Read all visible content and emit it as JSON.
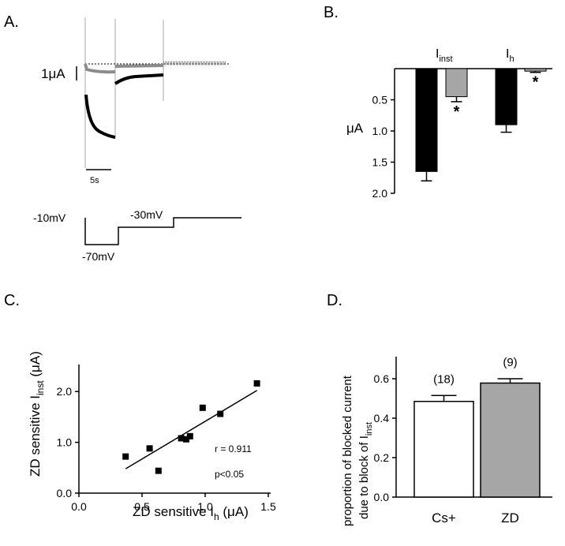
{
  "panels": {
    "A": {
      "label": "A."
    },
    "B": {
      "label": "B."
    },
    "C": {
      "label": "C."
    },
    "D": {
      "label": "D."
    }
  },
  "traces": {
    "scale_current_label": "1μA",
    "scale_time_label": "5s",
    "voltage_labels": [
      "-10mV",
      "-70mV",
      "-30mV"
    ],
    "colors": {
      "control": "#000000",
      "blocked": "#8c8c8c"
    }
  },
  "chart_data": [
    {
      "panel": "B",
      "type": "bar",
      "ylabel": "μA",
      "inverted_axis": true,
      "ylim": [
        0,
        2.0
      ],
      "yticks": [
        "0.5",
        "1.0",
        "1.5",
        "2.0"
      ],
      "groups": [
        {
          "label": "I",
          "subscript": "inst",
          "bars": [
            {
              "value": 1.65,
              "error": 0.15,
              "color": "#000000",
              "significance": ""
            },
            {
              "value": 0.45,
              "error": 0.08,
              "color": "#a6a6a6",
              "significance": "*"
            }
          ]
        },
        {
          "label": "I",
          "subscript": "h",
          "bars": [
            {
              "value": 0.9,
              "error": 0.12,
              "color": "#000000",
              "significance": ""
            },
            {
              "value": 0.04,
              "error": 0.02,
              "color": "#a6a6a6",
              "significance": "*"
            }
          ]
        }
      ]
    },
    {
      "panel": "C",
      "type": "scatter",
      "xlabel": {
        "pre": "ZD sensitive I",
        "sub": "h",
        "post": " (μA)"
      },
      "ylabel": {
        "pre": "ZD sensitive I",
        "sub": "inst",
        "post": " (μA)"
      },
      "xlim": [
        0.0,
        1.5
      ],
      "ylim": [
        0.0,
        2.5
      ],
      "xticks": [
        "0.0",
        "0.5",
        "1.0",
        "1.5"
      ],
      "yticks": [
        "0.0",
        "1.0",
        "2.0"
      ],
      "points": [
        [
          0.37,
          0.72
        ],
        [
          0.56,
          0.88
        ],
        [
          0.63,
          0.44
        ],
        [
          0.81,
          1.08
        ],
        [
          0.85,
          1.06
        ],
        [
          0.88,
          1.12
        ],
        [
          0.98,
          1.68
        ],
        [
          1.12,
          1.56
        ],
        [
          1.41,
          2.16
        ]
      ],
      "fit_line": [
        [
          0.37,
          0.48
        ],
        [
          1.41,
          2.02
        ]
      ],
      "annotations": [
        "r = 0.911",
        "p<0.05"
      ]
    },
    {
      "panel": "D",
      "type": "bar",
      "ylabel": {
        "line1": "proportion of blocked current",
        "pre": "due to block of I",
        "sub": "inst"
      },
      "ylim": [
        0.0,
        0.7
      ],
      "yticks": [
        "0.0",
        "0.2",
        "0.4",
        "0.6"
      ],
      "categories": [
        "Cs+",
        "ZD"
      ],
      "values": [
        0.485,
        0.578
      ],
      "errors": [
        0.03,
        0.022
      ],
      "n_labels": [
        "(18)",
        "(9)"
      ],
      "colors": [
        "#ffffff",
        "#a6a6a6"
      ]
    }
  ]
}
